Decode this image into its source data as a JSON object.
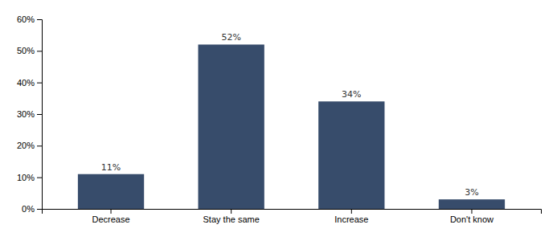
{
  "chart_data": {
    "type": "bar",
    "categories": [
      "Decrease",
      "Stay the same",
      "Increase",
      "Don't know"
    ],
    "values": [
      11,
      52,
      34,
      3
    ],
    "value_labels": [
      "11%",
      "52%",
      "34%",
      "3%"
    ],
    "color": "#374c6b",
    "ylim": [
      0,
      60
    ],
    "yticks": [
      {
        "value": 0,
        "label": "0%"
      },
      {
        "value": 10,
        "label": "10%"
      },
      {
        "value": 20,
        "label": "20%"
      },
      {
        "value": 30,
        "label": "30%"
      },
      {
        "value": 40,
        "label": "40%"
      },
      {
        "value": 50,
        "label": "50%"
      },
      {
        "value": 60,
        "label": "60%"
      }
    ],
    "grid": false,
    "data_labels": true
  }
}
